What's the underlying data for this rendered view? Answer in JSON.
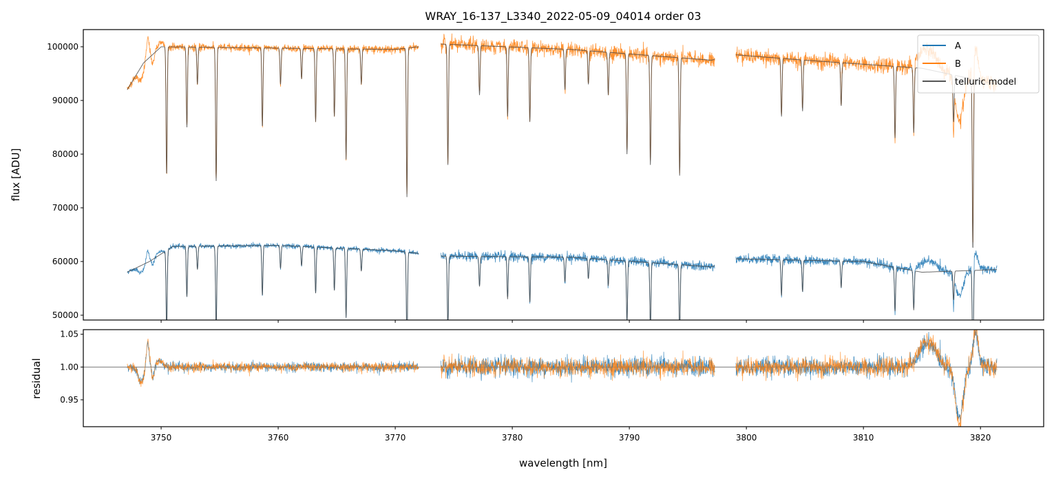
{
  "chart_data": [
    {
      "type": "line",
      "title": "WRAY_16-137_L3340_2022-05-09_04014  order 03",
      "xlabel": "",
      "ylabel": "flux [ADU]",
      "xlim": [
        3743.35,
        3825.4
      ],
      "ylim": [
        49100,
        103200
      ],
      "yticks": [
        "50000",
        "60000",
        "70000",
        "80000",
        "90000",
        "100000"
      ],
      "legend": {
        "placement": "top-right",
        "entries": [
          "A",
          "B",
          "telluric model"
        ]
      },
      "segments": [
        [
          3747.1,
          3772.0
        ],
        [
          3773.9,
          3797.3
        ],
        [
          3799.1,
          3821.4
        ]
      ],
      "continuum_B": [
        [
          3747.1,
          92000
        ],
        [
          3748.5,
          97000
        ],
        [
          3750,
          100000
        ],
        [
          3770,
          99500
        ],
        [
          3774,
          100500
        ],
        [
          3785,
          99500
        ],
        [
          3797,
          97500
        ],
        [
          3799.1,
          98500
        ],
        [
          3805,
          97500
        ],
        [
          3815,
          96000
        ],
        [
          3821.4,
          93000
        ]
      ],
      "continuum_A": [
        [
          3747.1,
          58000
        ],
        [
          3749,
          60000
        ],
        [
          3751,
          62800
        ],
        [
          3760,
          63000
        ],
        [
          3770,
          62000
        ],
        [
          3774,
          61000
        ],
        [
          3785,
          60800
        ],
        [
          3797,
          59000
        ],
        [
          3799.1,
          60500
        ],
        [
          3810,
          60000
        ],
        [
          3815,
          58000
        ],
        [
          3821.4,
          58500
        ]
      ],
      "absorption_lines": [
        [
          3750.47,
          76000
        ],
        [
          3752.2,
          85000
        ],
        [
          3753.1,
          93000
        ],
        [
          3754.7,
          75000
        ],
        [
          3758.65,
          85000
        ],
        [
          3760.2,
          93000
        ],
        [
          3762.0,
          94000
        ],
        [
          3763.2,
          86000
        ],
        [
          3764.8,
          87000
        ],
        [
          3765.8,
          79000
        ],
        [
          3767.1,
          93000
        ],
        [
          3771.0,
          72000
        ],
        [
          3774.5,
          78000
        ],
        [
          3777.2,
          91000
        ],
        [
          3779.6,
          87000
        ],
        [
          3781.5,
          86000
        ],
        [
          3784.5,
          92000
        ],
        [
          3786.5,
          93000
        ],
        [
          3788.2,
          91000
        ],
        [
          3789.8,
          80000
        ],
        [
          3791.8,
          78000
        ],
        [
          3794.3,
          76000
        ],
        [
          3803.0,
          87000
        ],
        [
          3804.8,
          88000
        ],
        [
          3808.1,
          89000
        ],
        [
          3812.7,
          83000
        ],
        [
          3814.3,
          84000
        ],
        [
          3817.7,
          86000
        ],
        [
          3819.35,
          62000
        ]
      ]
    },
    {
      "type": "line",
      "xlabel": "wavelength [nm]",
      "ylabel": "residual",
      "xlim": [
        3743.35,
        3825.4
      ],
      "ylim": [
        0.909,
        1.057
      ],
      "xticks": [
        "3750",
        "3760",
        "3770",
        "3780",
        "3790",
        "3800",
        "3810",
        "3820"
      ],
      "yticks": [
        "0.95",
        "1.00",
        "1.05"
      ],
      "reference_line": 1.0,
      "features": [
        [
          3748.3,
          -0.025,
          0.35
        ],
        [
          3748.85,
          0.04,
          0.18
        ],
        [
          3749.3,
          -0.018,
          0.15
        ],
        [
          3749.9,
          0.01,
          0.4
        ],
        [
          3815.5,
          0.04,
          1.0
        ],
        [
          3818.2,
          -0.09,
          0.45
        ],
        [
          3819.6,
          0.06,
          0.3
        ]
      ]
    }
  ],
  "colors": {
    "A": "#1f77b4",
    "B": "#ff7f0e",
    "model": "#444444"
  }
}
